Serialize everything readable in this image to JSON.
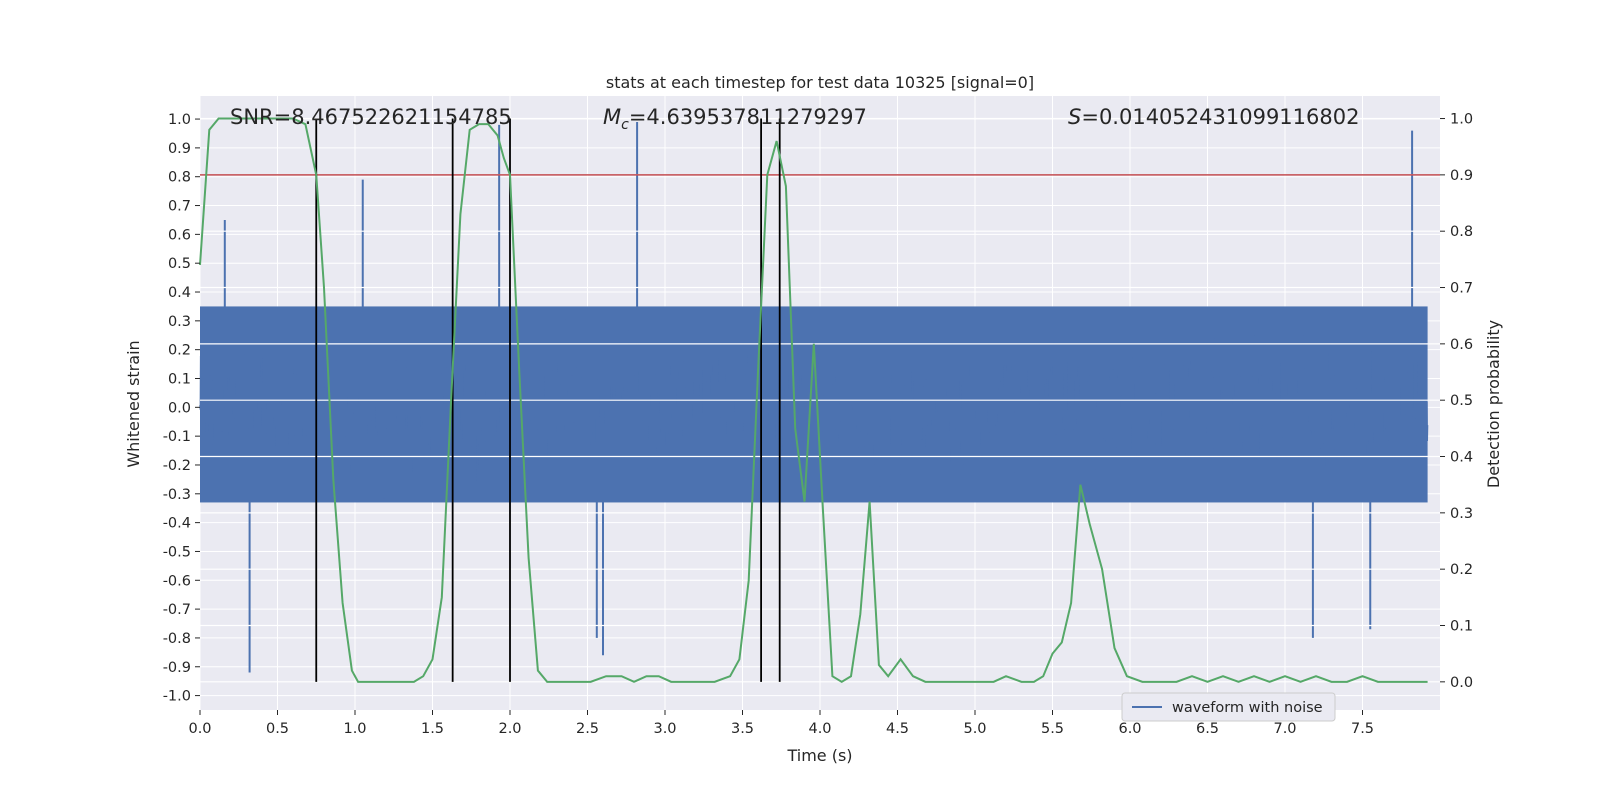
{
  "chart_data": {
    "type": "line",
    "title": "stats at each timestep for test data 10325 [signal=0]",
    "xlabel": "Time (s)",
    "ylabel_left": "Whitened strain",
    "ylabel_right": "Detection probability",
    "xlim": [
      0,
      8.0
    ],
    "ylim_left": [
      -1.05,
      1.08
    ],
    "ylim_right": [
      -0.05,
      1.04
    ],
    "x_ticks": [
      "0.0",
      "0.5",
      "1.0",
      "1.5",
      "2.0",
      "2.5",
      "3.0",
      "3.5",
      "4.0",
      "4.5",
      "5.0",
      "5.5",
      "6.0",
      "6.5",
      "7.0",
      "7.5"
    ],
    "y_ticks_left": [
      "-1.0",
      "-0.9",
      "-0.8",
      "-0.7",
      "-0.6",
      "-0.5",
      "-0.4",
      "-0.3",
      "-0.2",
      "-0.1",
      "0.0",
      "0.1",
      "0.2",
      "0.3",
      "0.4",
      "0.5",
      "0.6",
      "0.7",
      "0.8",
      "0.9",
      "1.0"
    ],
    "y_ticks_right": [
      "0.0",
      "0.1",
      "0.2",
      "0.3",
      "0.4",
      "0.5",
      "0.6",
      "0.7",
      "0.8",
      "0.9",
      "1.0"
    ],
    "annotations": {
      "snr": "SNR=8.467522621154785",
      "mc_symbol": "M",
      "mc_sub": "c",
      "mc_value": "=4.639537811279297",
      "s_symbol": "S",
      "s_value": "=0.014052431099116802"
    },
    "threshold": 0.9,
    "vertical_lines": [
      0.75,
      1.63,
      2.0,
      3.62,
      3.74
    ],
    "legend": "waveform with noise",
    "waveform": {
      "name": "waveform with noise",
      "color": "#4c72b0",
      "core_band": [
        -0.33,
        0.35
      ],
      "note": "dense noisy whitened strain series; spikes listed in data units",
      "spikes": [
        {
          "x": 0.32,
          "y": -0.92
        },
        {
          "x": 2.82,
          "y": 0.99
        },
        {
          "x": 2.6,
          "y": -0.86
        },
        {
          "x": 2.56,
          "y": -0.8
        },
        {
          "x": 7.18,
          "y": -0.8
        },
        {
          "x": 7.55,
          "y": -0.77
        },
        {
          "x": 7.82,
          "y": 0.96
        },
        {
          "x": 0.16,
          "y": 0.65
        },
        {
          "x": 1.05,
          "y": 0.79
        },
        {
          "x": 1.93,
          "y": 0.98
        }
      ]
    },
    "probability": {
      "name": "detection probability",
      "color": "#55a868",
      "x": [
        0.0,
        0.06,
        0.12,
        0.2,
        0.3,
        0.4,
        0.5,
        0.6,
        0.68,
        0.75,
        0.8,
        0.86,
        0.92,
        0.98,
        1.02,
        1.1,
        1.2,
        1.3,
        1.38,
        1.44,
        1.5,
        1.56,
        1.62,
        1.68,
        1.74,
        1.8,
        1.86,
        1.92,
        1.96,
        2.0,
        2.06,
        2.12,
        2.18,
        2.24,
        2.32,
        2.42,
        2.52,
        2.62,
        2.72,
        2.8,
        2.88,
        2.96,
        3.04,
        3.12,
        3.22,
        3.32,
        3.42,
        3.48,
        3.54,
        3.6,
        3.66,
        3.72,
        3.78,
        3.84,
        3.9,
        3.96,
        4.02,
        4.08,
        4.14,
        4.2,
        4.26,
        4.32,
        4.38,
        4.44,
        4.52,
        4.6,
        4.68,
        4.78,
        4.9,
        5.0,
        5.12,
        5.2,
        5.3,
        5.38,
        5.44,
        5.5,
        5.56,
        5.62,
        5.68,
        5.74,
        5.82,
        5.9,
        5.98,
        6.08,
        6.2,
        6.3,
        6.4,
        6.5,
        6.6,
        6.7,
        6.8,
        6.9,
        7.0,
        7.1,
        7.2,
        7.3,
        7.4,
        7.5,
        7.6,
        7.7,
        7.8,
        7.92
      ],
      "y": [
        0.74,
        0.98,
        1.0,
        1.0,
        1.0,
        1.0,
        1.0,
        1.0,
        0.99,
        0.9,
        0.7,
        0.36,
        0.14,
        0.02,
        0.0,
        0.0,
        0.0,
        0.0,
        0.0,
        0.01,
        0.04,
        0.15,
        0.5,
        0.83,
        0.98,
        0.99,
        0.99,
        0.97,
        0.93,
        0.9,
        0.55,
        0.22,
        0.02,
        0.0,
        0.0,
        0.0,
        0.0,
        0.01,
        0.01,
        0.0,
        0.01,
        0.01,
        0.0,
        0.0,
        0.0,
        0.0,
        0.01,
        0.04,
        0.18,
        0.55,
        0.9,
        0.96,
        0.88,
        0.45,
        0.32,
        0.6,
        0.3,
        0.01,
        0.0,
        0.01,
        0.12,
        0.32,
        0.03,
        0.01,
        0.04,
        0.01,
        0.0,
        0.0,
        0.0,
        0.0,
        0.0,
        0.01,
        0.0,
        0.0,
        0.01,
        0.05,
        0.07,
        0.14,
        0.35,
        0.28,
        0.2,
        0.06,
        0.01,
        0.0,
        0.0,
        0.0,
        0.01,
        0.0,
        0.01,
        0.0,
        0.01,
        0.0,
        0.01,
        0.0,
        0.01,
        0.0,
        0.0,
        0.01,
        0.0,
        0.0,
        0.0,
        0.0
      ]
    },
    "threshold_color": "#c44e52",
    "vline_color": "#000000"
  }
}
